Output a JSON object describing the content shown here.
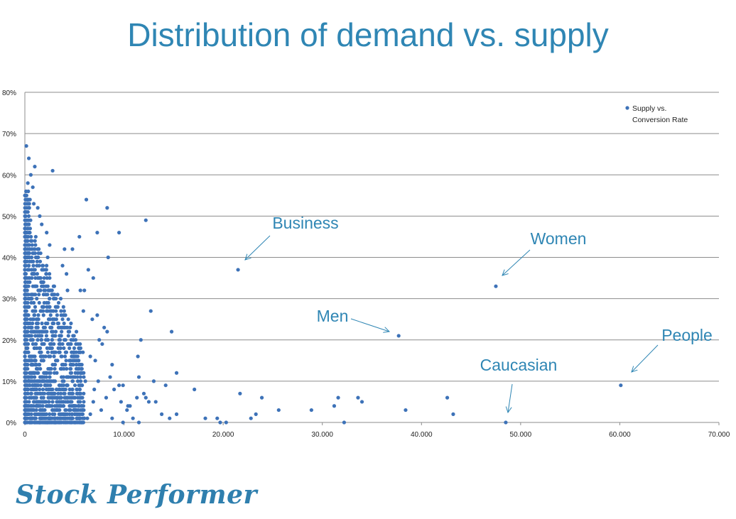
{
  "title": "Distribution of demand vs. supply",
  "logo_text": "Stock Performer",
  "colors": {
    "accent": "#2f86b4",
    "marker": "#3d72b8",
    "grid": "#8c8c8c"
  },
  "chart_data": {
    "type": "scatter",
    "title": "",
    "xlabel": "",
    "ylabel": "",
    "xlim": [
      0,
      70000
    ],
    "ylim": [
      0,
      0.8
    ],
    "grid": true,
    "legend_placement": "top-right",
    "x_ticks": [
      "0",
      "10.000",
      "20.000",
      "30.000",
      "40.000",
      "50.000",
      "60.000",
      "70.000"
    ],
    "y_ticks": [
      "0%",
      "10%",
      "20%",
      "30%",
      "40%",
      "50%",
      "60%",
      "70%",
      "80%"
    ],
    "series": [
      {
        "name": "Supply vs. Conversion Rate",
        "points": [
          [
            21500,
            0.37
          ],
          [
            47500,
            0.33
          ],
          [
            37700,
            0.21
          ],
          [
            60100,
            0.09
          ],
          [
            48500,
            0.0
          ],
          [
            12200,
            0.49
          ],
          [
            9500,
            0.46
          ],
          [
            8300,
            0.52
          ],
          [
            6200,
            0.54
          ],
          [
            7300,
            0.46
          ],
          [
            8400,
            0.4
          ],
          [
            2800,
            0.61
          ],
          [
            1000,
            0.62
          ],
          [
            150,
            0.67
          ],
          [
            5500,
            0.45
          ],
          [
            4000,
            0.42
          ],
          [
            4800,
            0.42
          ],
          [
            12700,
            0.27
          ],
          [
            14800,
            0.22
          ],
          [
            11700,
            0.2
          ],
          [
            7300,
            0.26
          ],
          [
            6800,
            0.25
          ],
          [
            5900,
            0.27
          ],
          [
            5200,
            0.22
          ],
          [
            6400,
            0.37
          ],
          [
            6900,
            0.35
          ],
          [
            3800,
            0.38
          ],
          [
            4200,
            0.36
          ],
          [
            6000,
            0.32
          ],
          [
            5600,
            0.32
          ],
          [
            4300,
            0.32
          ],
          [
            8800,
            0.14
          ],
          [
            9500,
            0.09
          ],
          [
            11400,
            0.16
          ],
          [
            11500,
            0.11
          ],
          [
            12500,
            0.05
          ],
          [
            13000,
            0.1
          ],
          [
            14200,
            0.09
          ],
          [
            15300,
            0.12
          ],
          [
            17100,
            0.08
          ],
          [
            21700,
            0.07
          ],
          [
            23900,
            0.06
          ],
          [
            25600,
            0.03
          ],
          [
            28900,
            0.03
          ],
          [
            31600,
            0.06
          ],
          [
            31200,
            0.04
          ],
          [
            33600,
            0.06
          ],
          [
            34000,
            0.05
          ],
          [
            38400,
            0.03
          ],
          [
            42600,
            0.06
          ],
          [
            43200,
            0.02
          ],
          [
            19700,
            0.0
          ],
          [
            20300,
            0.0
          ],
          [
            22800,
            0.01
          ],
          [
            23300,
            0.02
          ],
          [
            32200,
            0.0
          ],
          [
            18200,
            0.01
          ],
          [
            19400,
            0.01
          ],
          [
            15300,
            0.02
          ],
          [
            14600,
            0.01
          ],
          [
            12200,
            0.06
          ],
          [
            13200,
            0.05
          ],
          [
            13800,
            0.02
          ],
          [
            10400,
            0.04
          ],
          [
            11300,
            0.06
          ],
          [
            12000,
            0.07
          ],
          [
            7500,
            0.2
          ],
          [
            8000,
            0.23
          ],
          [
            8300,
            0.22
          ],
          [
            7800,
            0.19
          ],
          [
            6600,
            0.16
          ],
          [
            7100,
            0.15
          ],
          [
            5500,
            0.18
          ],
          [
            4600,
            0.15
          ],
          [
            9000,
            0.08
          ],
          [
            8200,
            0.06
          ],
          [
            9700,
            0.05
          ],
          [
            10600,
            0.04
          ],
          [
            7700,
            0.03
          ],
          [
            6600,
            0.02
          ],
          [
            6300,
            0.01
          ],
          [
            5800,
            0.0
          ],
          [
            8800,
            0.01
          ],
          [
            9900,
            0.0
          ],
          [
            10900,
            0.01
          ],
          [
            11500,
            0.0
          ],
          [
            7000,
            0.08
          ],
          [
            6100,
            0.1
          ],
          [
            5100,
            0.12
          ],
          [
            3400,
            0.24
          ],
          [
            3600,
            0.18
          ],
          [
            4100,
            0.2
          ],
          [
            2600,
            0.26
          ],
          [
            2900,
            0.3
          ],
          [
            3100,
            0.28
          ],
          [
            2300,
            0.4
          ],
          [
            2500,
            0.43
          ],
          [
            2200,
            0.46
          ],
          [
            1700,
            0.48
          ],
          [
            1300,
            0.52
          ],
          [
            1500,
            0.5
          ],
          [
            800,
            0.57
          ],
          [
            900,
            0.53
          ],
          [
            600,
            0.6
          ],
          [
            400,
            0.64
          ],
          [
            300,
            0.58
          ],
          [
            1100,
            0.45
          ],
          [
            1800,
            0.34
          ],
          [
            2100,
            0.37
          ],
          [
            2700,
            0.22
          ],
          [
            3700,
            0.13
          ],
          [
            4400,
            0.11
          ],
          [
            5300,
            0.07
          ],
          [
            4900,
            0.04
          ],
          [
            3900,
            0.05
          ],
          [
            3200,
            0.08
          ],
          [
            2400,
            0.1
          ],
          [
            1600,
            0.16
          ],
          [
            1200,
            0.3
          ],
          [
            700,
            0.35
          ],
          [
            500,
            0.42
          ],
          [
            1900,
            0.19
          ],
          [
            2800,
            0.14
          ],
          [
            3500,
            0.03
          ],
          [
            4500,
            0.02
          ],
          [
            5600,
            0.03
          ],
          [
            6900,
            0.05
          ],
          [
            7400,
            0.1
          ],
          [
            8600,
            0.11
          ],
          [
            9900,
            0.09
          ],
          [
            10300,
            0.03
          ]
        ]
      }
    ],
    "annotations": [
      {
        "label": "Business",
        "x": 21500,
        "y": 0.37
      },
      {
        "label": "Women",
        "x": 47500,
        "y": 0.33
      },
      {
        "label": "Men",
        "x": 37700,
        "y": 0.21
      },
      {
        "label": "People",
        "x": 60100,
        "y": 0.09
      },
      {
        "label": "Caucasian",
        "x": 48500,
        "y": 0.0
      }
    ]
  }
}
